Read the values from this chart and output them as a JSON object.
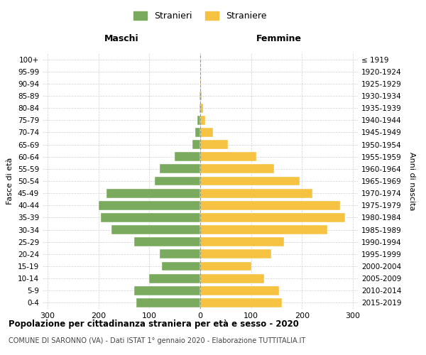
{
  "age_groups": [
    "0-4",
    "5-9",
    "10-14",
    "15-19",
    "20-24",
    "25-29",
    "30-34",
    "35-39",
    "40-44",
    "45-49",
    "50-54",
    "55-59",
    "60-64",
    "65-69",
    "70-74",
    "75-79",
    "80-84",
    "85-89",
    "90-94",
    "95-99",
    "100+"
  ],
  "birth_years": [
    "2015-2019",
    "2010-2014",
    "2005-2009",
    "2000-2004",
    "1995-1999",
    "1990-1994",
    "1985-1989",
    "1980-1984",
    "1975-1979",
    "1970-1974",
    "1965-1969",
    "1960-1964",
    "1955-1959",
    "1950-1954",
    "1945-1949",
    "1940-1944",
    "1935-1939",
    "1930-1934",
    "1925-1929",
    "1920-1924",
    "≤ 1919"
  ],
  "maschi": [
    125,
    130,
    100,
    75,
    80,
    130,
    175,
    195,
    200,
    185,
    90,
    80,
    50,
    15,
    10,
    5,
    2,
    1,
    0,
    0,
    0
  ],
  "femmine": [
    160,
    155,
    125,
    100,
    140,
    165,
    250,
    285,
    275,
    220,
    195,
    145,
    110,
    55,
    25,
    10,
    5,
    3,
    2,
    0,
    0
  ],
  "male_color": "#7aaa5d",
  "female_color": "#f5c242",
  "background_color": "#ffffff",
  "grid_color": "#cccccc",
  "title": "Popolazione per cittadinanza straniera per età e sesso - 2020",
  "subtitle": "COMUNE DI SARONNO (VA) - Dati ISTAT 1° gennaio 2020 - Elaborazione TUTTITALIA.IT",
  "xlabel_left": "Maschi",
  "xlabel_right": "Femmine",
  "ylabel_left": "Fasce di età",
  "ylabel_right": "Anni di nascita",
  "legend_male": "Stranieri",
  "legend_female": "Straniere",
  "xlim": 310
}
